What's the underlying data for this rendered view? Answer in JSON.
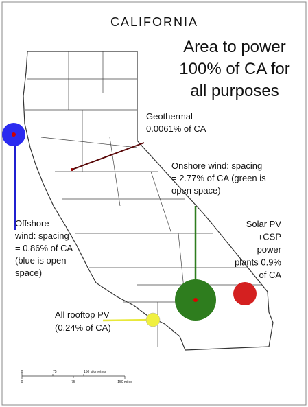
{
  "title": "CALIFORNIA",
  "heading": {
    "lines": [
      "Area to power",
      "100% of CA for",
      "all purposes"
    ]
  },
  "annotations": {
    "geothermal": {
      "lines": [
        "Geothermal",
        "0.0061% of CA"
      ]
    },
    "onshore_wind": {
      "lines": [
        "Onshore wind: spacing",
        "= 2.77% of CA (green is",
        "open space)"
      ]
    },
    "solar": {
      "lines": [
        "Solar PV",
        "+CSP",
        "power",
        "plants 0.9%",
        "of CA"
      ]
    },
    "offshore_wind": {
      "lines": [
        "Offshore",
        "wind: spacing",
        "= 0.86% of CA",
        "(blue is open",
        "space)"
      ]
    },
    "rooftop_pv": {
      "lines": [
        "All rooftop PV",
        "(0.24% of CA)"
      ]
    }
  },
  "scale_bar": {
    "km_labels": [
      "0",
      "75",
      "150 kilometers"
    ],
    "mile_labels": [
      "0",
      "75",
      "150 miles"
    ]
  }
}
